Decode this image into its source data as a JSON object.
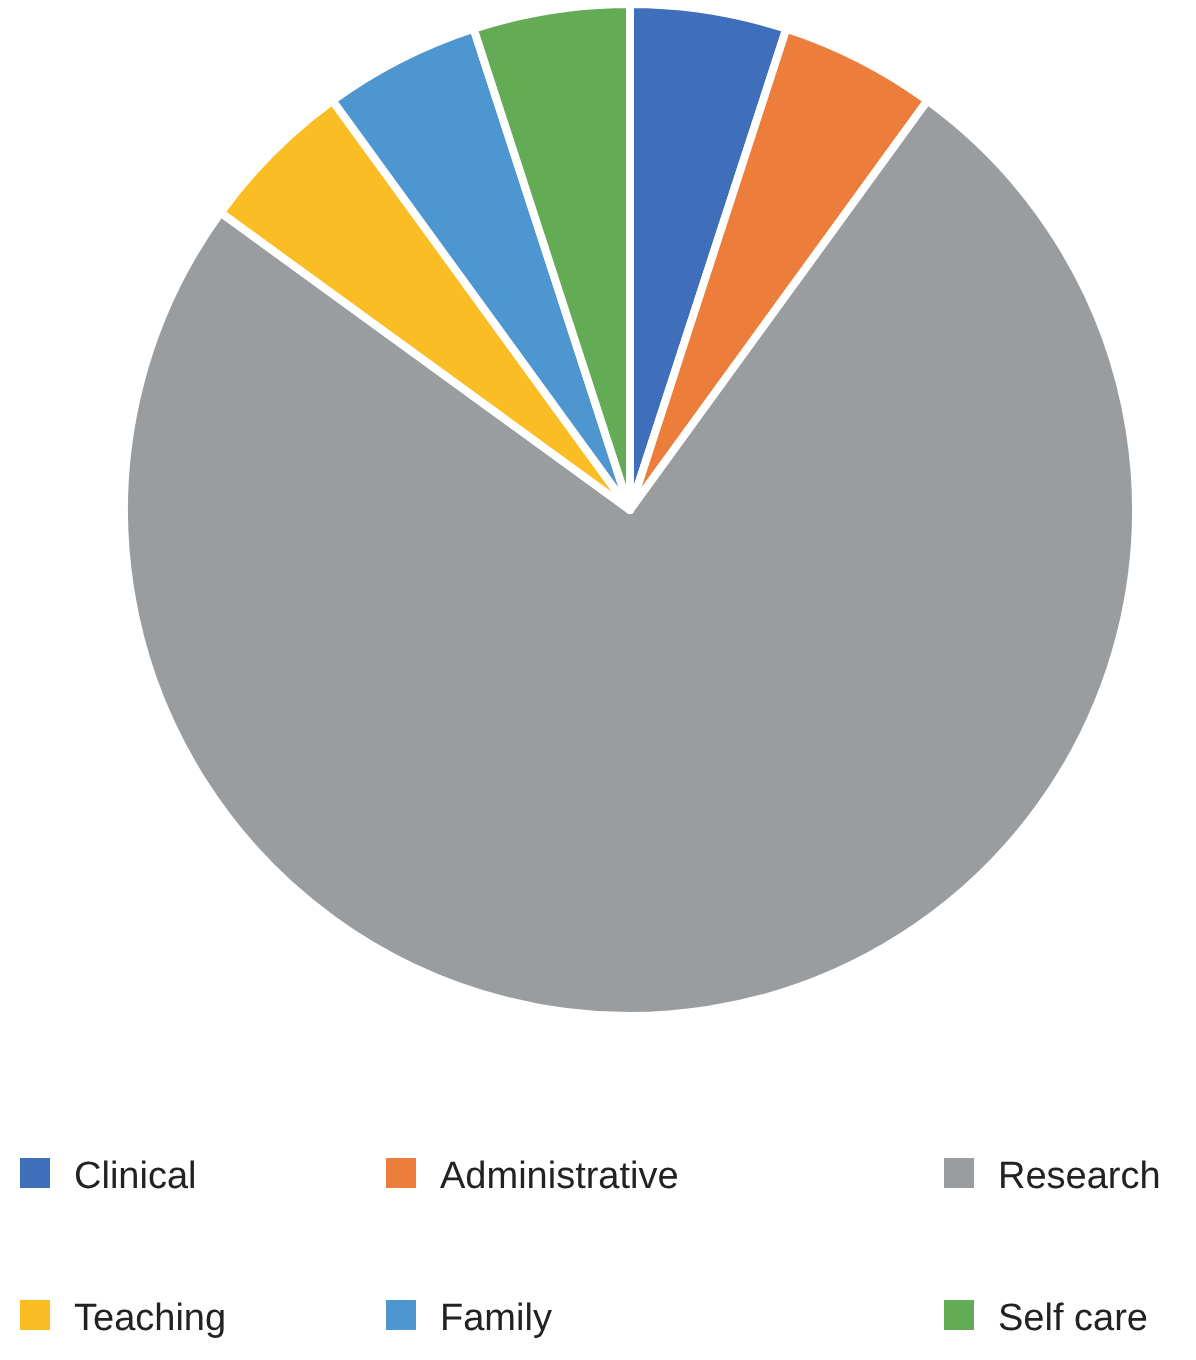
{
  "chart_data": {
    "type": "pie",
    "categories": [
      "Clinical",
      "Administrative",
      "Research",
      "Teaching",
      "Family",
      "Self care"
    ],
    "values": [
      5,
      5,
      75,
      5,
      5,
      5
    ],
    "colors": [
      "#3f6fba",
      "#ed7d3a",
      "#9a9d9f",
      "#fbbd24",
      "#4e96d0",
      "#63ab55"
    ],
    "legend": "bottom"
  }
}
